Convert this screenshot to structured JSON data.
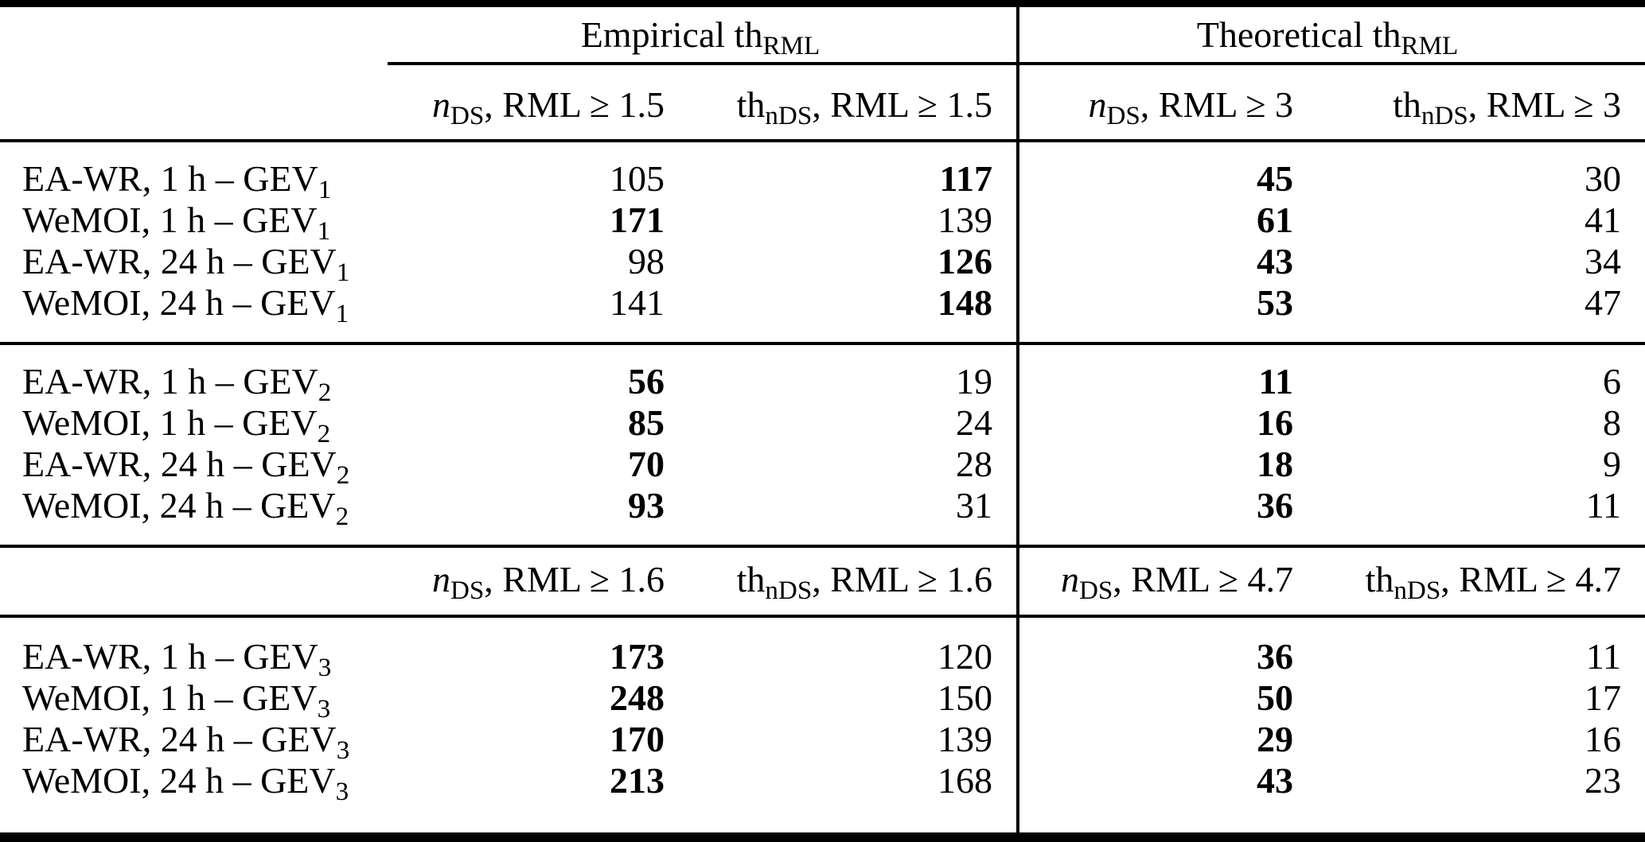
{
  "table": {
    "group_headers": [
      {
        "label": "Empirical th_{RML}"
      },
      {
        "label": "Theoretical th_{RML}"
      }
    ],
    "subheader_row_1": [
      "*n*_{DS}, RML ≥ 1.5",
      "th_{nDS}, RML ≥ 1.5",
      "*n*_{DS}, RML ≥ 3",
      "th_{nDS}, RML ≥ 3"
    ],
    "subheader_row_2": [
      "*n*_{DS}, RML ≥ 1.6",
      "th_{nDS}, RML ≥ 1.6",
      "*n*_{DS}, RML ≥ 4.7",
      "th_{nDS}, RML ≥ 4.7"
    ],
    "sections": [
      {
        "rows": [
          {
            "label": "EA-WR, 1 h – GEV_{1}",
            "values": [
              {
                "v": "105",
                "bold": false
              },
              {
                "v": "117",
                "bold": true
              },
              {
                "v": "45",
                "bold": true
              },
              {
                "v": "30",
                "bold": false
              }
            ]
          },
          {
            "label": "WeMOI, 1 h – GEV_{1}",
            "values": [
              {
                "v": "171",
                "bold": true
              },
              {
                "v": "139",
                "bold": false
              },
              {
                "v": "61",
                "bold": true
              },
              {
                "v": "41",
                "bold": false
              }
            ]
          },
          {
            "label": "EA-WR, 24 h – GEV_{1}",
            "values": [
              {
                "v": "98",
                "bold": false
              },
              {
                "v": "126",
                "bold": true
              },
              {
                "v": "43",
                "bold": true
              },
              {
                "v": "34",
                "bold": false
              }
            ]
          },
          {
            "label": "WeMOI, 24 h – GEV_{1}",
            "values": [
              {
                "v": "141",
                "bold": false
              },
              {
                "v": "148",
                "bold": true
              },
              {
                "v": "53",
                "bold": true
              },
              {
                "v": "47",
                "bold": false
              }
            ]
          }
        ]
      },
      {
        "rows": [
          {
            "label": "EA-WR, 1 h – GEV_{2}",
            "values": [
              {
                "v": "56",
                "bold": true
              },
              {
                "v": "19",
                "bold": false
              },
              {
                "v": "11",
                "bold": true
              },
              {
                "v": "6",
                "bold": false
              }
            ]
          },
          {
            "label": "WeMOI, 1 h – GEV_{2}",
            "values": [
              {
                "v": "85",
                "bold": true
              },
              {
                "v": "24",
                "bold": false
              },
              {
                "v": "16",
                "bold": true
              },
              {
                "v": "8",
                "bold": false
              }
            ]
          },
          {
            "label": "EA-WR, 24 h – GEV_{2}",
            "values": [
              {
                "v": "70",
                "bold": true
              },
              {
                "v": "28",
                "bold": false
              },
              {
                "v": "18",
                "bold": true
              },
              {
                "v": "9",
                "bold": false
              }
            ]
          },
          {
            "label": "WeMOI, 24 h – GEV_{2}",
            "values": [
              {
                "v": "93",
                "bold": true
              },
              {
                "v": "31",
                "bold": false
              },
              {
                "v": "36",
                "bold": true
              },
              {
                "v": "11",
                "bold": false
              }
            ]
          }
        ]
      },
      {
        "rows": [
          {
            "label": "EA-WR, 1 h – GEV_{3}",
            "values": [
              {
                "v": "173",
                "bold": true
              },
              {
                "v": "120",
                "bold": false
              },
              {
                "v": "36",
                "bold": true
              },
              {
                "v": "11",
                "bold": false
              }
            ]
          },
          {
            "label": "WeMOI, 1 h – GEV_{3}",
            "values": [
              {
                "v": "248",
                "bold": true
              },
              {
                "v": "150",
                "bold": false
              },
              {
                "v": "50",
                "bold": true
              },
              {
                "v": "17",
                "bold": false
              }
            ]
          },
          {
            "label": "EA-WR, 24 h – GEV_{3}",
            "values": [
              {
                "v": "170",
                "bold": true
              },
              {
                "v": "139",
                "bold": false
              },
              {
                "v": "29",
                "bold": true
              },
              {
                "v": "16",
                "bold": false
              }
            ]
          },
          {
            "label": "WeMOI, 24 h – GEV_{3}",
            "values": [
              {
                "v": "213",
                "bold": true
              },
              {
                "v": "168",
                "bold": false
              },
              {
                "v": "43",
                "bold": true
              },
              {
                "v": "23",
                "bold": false
              }
            ]
          }
        ]
      }
    ]
  },
  "chart_data": {
    "type": "table",
    "column_groups": [
      "Empirical th_RML",
      "Theoretical th_RML"
    ],
    "columns_block1": [
      "n_DS, RML >= 1.5",
      "th_nDS, RML >= 1.5",
      "n_DS, RML >= 3",
      "th_nDS, RML >= 3"
    ],
    "columns_block2": [
      "n_DS, RML >= 1.6",
      "th_nDS, RML >= 1.6",
      "n_DS, RML >= 4.7",
      "th_nDS, RML >= 4.7"
    ],
    "rows": [
      {
        "label": "EA-WR, 1 h – GEV1",
        "values": [
          105,
          117,
          45,
          30
        ]
      },
      {
        "label": "WeMOI, 1 h – GEV1",
        "values": [
          171,
          139,
          61,
          41
        ]
      },
      {
        "label": "EA-WR, 24 h – GEV1",
        "values": [
          98,
          126,
          43,
          34
        ]
      },
      {
        "label": "WeMOI, 24 h – GEV1",
        "values": [
          141,
          148,
          53,
          47
        ]
      },
      {
        "label": "EA-WR, 1 h – GEV2",
        "values": [
          56,
          19,
          11,
          6
        ]
      },
      {
        "label": "WeMOI, 1 h – GEV2",
        "values": [
          85,
          24,
          16,
          8
        ]
      },
      {
        "label": "EA-WR, 24 h – GEV2",
        "values": [
          70,
          28,
          18,
          9
        ]
      },
      {
        "label": "WeMOI, 24 h – GEV2",
        "values": [
          93,
          31,
          36,
          11
        ]
      },
      {
        "label": "EA-WR, 1 h – GEV3",
        "values": [
          173,
          120,
          36,
          11
        ]
      },
      {
        "label": "WeMOI, 1 h – GEV3",
        "values": [
          248,
          150,
          50,
          17
        ]
      },
      {
        "label": "EA-WR, 24 h – GEV3",
        "values": [
          170,
          139,
          29,
          16
        ]
      },
      {
        "label": "WeMOI, 24 h – GEV3",
        "values": [
          213,
          168,
          43,
          23
        ]
      }
    ]
  }
}
